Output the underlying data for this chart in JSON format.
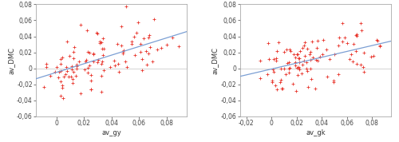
{
  "left": {
    "xlabel": "av_gy",
    "ylabel": "av_DMC",
    "xlim": [
      -0.015,
      0.095
    ],
    "ylim": [
      -0.06,
      0.08
    ],
    "xticks": [
      0,
      0.02,
      0.04,
      0.06,
      0.08
    ],
    "yticks": [
      -0.06,
      -0.04,
      -0.02,
      0,
      0.02,
      0.04,
      0.06,
      0.08
    ],
    "trend_x": [
      -0.015,
      0.095
    ],
    "trend_y": [
      -0.013,
      0.046
    ],
    "seed": 42
  },
  "right": {
    "xlabel": "av_gk",
    "ylabel": "av_DMC",
    "xlim": [
      -0.025,
      0.095
    ],
    "ylim": [
      -0.06,
      0.08
    ],
    "xticks": [
      -0.02,
      0,
      0.02,
      0.04,
      0.06,
      0.08
    ],
    "yticks": [
      -0.06,
      -0.04,
      -0.02,
      0,
      0.02,
      0.04,
      0.06,
      0.08
    ],
    "trend_x": [
      -0.025,
      0.095
    ],
    "trend_y": [
      -0.01,
      0.034
    ],
    "seed": 7
  },
  "marker_color": "#e8332a",
  "trend_color": "#7b9fd4",
  "hline_color": "#cccccc",
  "bg_color": "#ffffff",
  "border_color": "#aaaaaa",
  "fontsize": 6.0,
  "n_points": 110
}
